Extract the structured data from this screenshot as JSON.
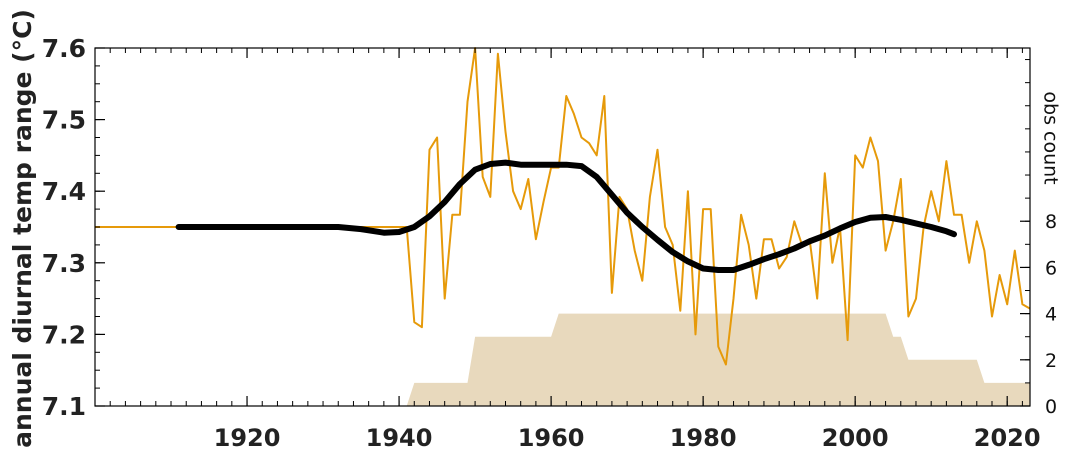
{
  "chart_data": {
    "type": "line",
    "xlim": [
      1900,
      2023
    ],
    "ylim": [
      7.1,
      7.6
    ],
    "ylabel": "annual diurnal temp range (°C)",
    "y2label": "obs count",
    "y2lim": [
      0,
      15.5
    ],
    "x_ticks": [
      1920,
      1940,
      1960,
      1980,
      2000,
      2020
    ],
    "y_ticks": [
      7.1,
      7.2,
      7.3,
      7.4,
      7.5,
      7.6
    ],
    "y_tick_labels": [
      "7.1",
      "7.2",
      "7.3",
      "7.4",
      "7.5",
      "7.6"
    ],
    "y2_ticks": [
      0,
      2,
      4,
      6,
      8
    ],
    "y2_tick_labels": [
      "0",
      "2",
      "4",
      "6",
      "8"
    ],
    "grid": false,
    "colors": {
      "annual": "#E69A0A",
      "smooth": "#000000",
      "count": "#E8D9BD",
      "axis": "#000000",
      "text": "#222222"
    },
    "annual": {
      "x": [
        1900,
        1941,
        1942,
        1943,
        1944,
        1945,
        1946,
        1947,
        1948,
        1949,
        1950,
        1951,
        1952,
        1953,
        1954,
        1955,
        1956,
        1957,
        1958,
        1959,
        1960,
        1961,
        1962,
        1963,
        1964,
        1965,
        1966,
        1967,
        1968,
        1969,
        1970,
        1971,
        1972,
        1973,
        1974,
        1975,
        1976,
        1977,
        1978,
        1979,
        1980,
        1981,
        1982,
        1983,
        1984,
        1985,
        1986,
        1987,
        1988,
        1989,
        1990,
        1991,
        1992,
        1993,
        1994,
        1995,
        1996,
        1997,
        1998,
        1999,
        2000,
        2001,
        2002,
        2003,
        2004,
        2005,
        2006,
        2007,
        2008,
        2009,
        2010,
        2011,
        2012,
        2013,
        2014,
        2015,
        2016,
        2017,
        2018,
        2019,
        2020,
        2021,
        2022,
        2023
      ],
      "y": [
        7.35,
        7.35,
        7.217,
        7.21,
        7.458,
        7.475,
        7.25,
        7.367,
        7.367,
        7.525,
        7.6,
        7.42,
        7.392,
        7.592,
        7.483,
        7.4,
        7.375,
        7.417,
        7.333,
        7.385,
        7.433,
        7.433,
        7.533,
        7.508,
        7.475,
        7.467,
        7.45,
        7.533,
        7.258,
        7.392,
        7.375,
        7.317,
        7.275,
        7.392,
        7.458,
        7.35,
        7.325,
        7.233,
        7.4,
        7.2,
        7.375,
        7.375,
        7.183,
        7.158,
        7.25,
        7.367,
        7.325,
        7.25,
        7.333,
        7.333,
        7.292,
        7.308,
        7.358,
        7.325,
        7.333,
        7.25,
        7.425,
        7.3,
        7.35,
        7.192,
        7.45,
        7.433,
        7.475,
        7.442,
        7.317,
        7.358,
        7.417,
        7.225,
        7.25,
        7.35,
        7.4,
        7.358,
        7.442,
        7.367,
        7.367,
        7.3,
        7.358,
        7.317,
        7.225,
        7.283,
        7.242,
        7.317,
        7.242,
        7.236
      ]
    },
    "smooth": {
      "x": [
        1911,
        1915,
        1920,
        1925,
        1930,
        1932,
        1935,
        1938,
        1940,
        1942,
        1944,
        1946,
        1948,
        1950,
        1952,
        1954,
        1956,
        1958,
        1960,
        1962,
        1964,
        1966,
        1968,
        1970,
        1972,
        1974,
        1976,
        1978,
        1980,
        1982,
        1984,
        1986,
        1988,
        1990,
        1992,
        1994,
        1996,
        1998,
        2000,
        2002,
        2004,
        2006,
        2008,
        2010,
        2012,
        2013
      ],
      "y": [
        7.35,
        7.35,
        7.35,
        7.35,
        7.35,
        7.35,
        7.347,
        7.342,
        7.343,
        7.35,
        7.365,
        7.385,
        7.41,
        7.43,
        7.438,
        7.44,
        7.437,
        7.437,
        7.437,
        7.437,
        7.435,
        7.42,
        7.395,
        7.37,
        7.35,
        7.332,
        7.315,
        7.302,
        7.292,
        7.29,
        7.29,
        7.297,
        7.305,
        7.312,
        7.32,
        7.33,
        7.338,
        7.348,
        7.357,
        7.363,
        7.364,
        7.36,
        7.355,
        7.35,
        7.344,
        7.34
      ]
    },
    "count": {
      "x": [
        1941,
        1942,
        1943,
        1949,
        1950,
        1951,
        1960,
        1961,
        1962,
        2004,
        2005,
        2006,
        2007,
        2008,
        2016,
        2017,
        2023
      ],
      "y": [
        0,
        1,
        1,
        1,
        3,
        3,
        3,
        4,
        4,
        4,
        3,
        3,
        2,
        2,
        2,
        1,
        1
      ]
    }
  }
}
